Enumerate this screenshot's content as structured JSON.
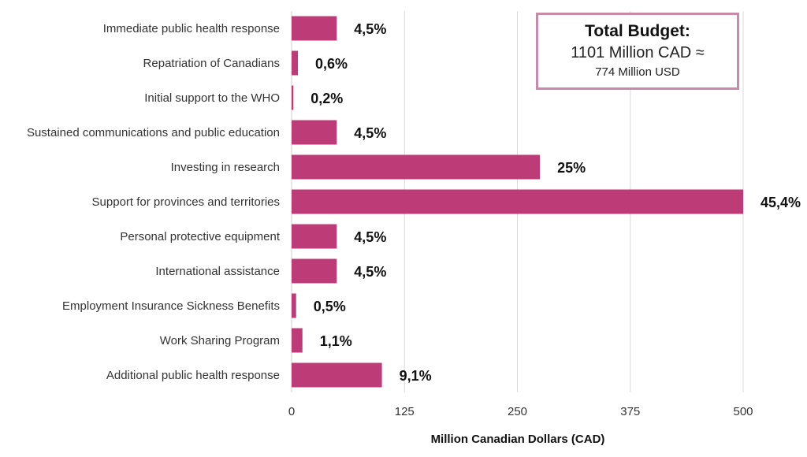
{
  "chart_data": {
    "type": "bar",
    "orientation": "horizontal",
    "categories": [
      "Immediate public health response",
      "Repatriation of Canadians",
      "Initial support to the WHO",
      "Sustained communications and public education",
      "Investing in research",
      "Support for provinces and territories",
      "Personal protective equipment",
      "International assistance",
      "Employment Insurance Sickness Benefits",
      "Work Sharing Program",
      "Additional public health response"
    ],
    "values": [
      50,
      7,
      2,
      50,
      275,
      500,
      50,
      50,
      5,
      12,
      100
    ],
    "value_labels": [
      "4,5%",
      "0,6%",
      "0,2%",
      "4,5%",
      "25%",
      "45,4%",
      "4,5%",
      "4,5%",
      "0,5%",
      "1,1%",
      "9,1%"
    ],
    "xlabel": "Million Canadian Dollars (CAD)",
    "xlim": [
      0,
      500
    ],
    "xticks": [
      0,
      125,
      250,
      375,
      500
    ],
    "xtick_labels": [
      "0",
      "125",
      "250",
      "375",
      "500"
    ],
    "grid": "vertical",
    "bar_color": "#bd3c78"
  },
  "budget_box": {
    "title": "Total Budget:",
    "line1": "1101 Million CAD ≈",
    "line2": "774 Million USD",
    "border_color": "#c98aa8"
  }
}
